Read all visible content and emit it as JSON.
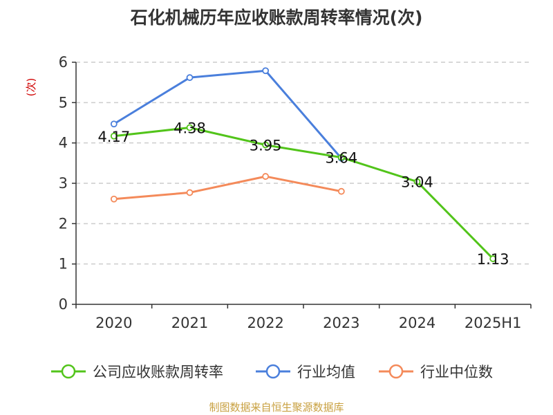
{
  "chart_data": {
    "type": "line",
    "title": "石化机械历年应收账款周转率情况(次)",
    "ylabel": "(次)",
    "categories": [
      "2020",
      "2021",
      "2022",
      "2023",
      "2024",
      "2025H1"
    ],
    "ylim": [
      0,
      6
    ],
    "yticks": [
      0,
      1,
      2,
      3,
      4,
      5,
      6
    ],
    "grid": true,
    "legend_position": "bottom",
    "series": [
      {
        "name": "公司应收账款周转率",
        "color": "#52c41a",
        "values": [
          4.17,
          4.38,
          3.95,
          3.64,
          3.04,
          1.13
        ],
        "labels": [
          "4.17",
          "4.38",
          "3.95",
          "3.64",
          "3.04",
          "1.13"
        ]
      },
      {
        "name": "行业均值",
        "color": "#4a7fdc",
        "values": [
          4.47,
          5.62,
          5.79,
          3.62,
          null,
          null
        ]
      },
      {
        "name": "行业中位数",
        "color": "#f48a5a",
        "values": [
          2.61,
          2.77,
          3.17,
          2.8,
          null,
          null
        ]
      }
    ]
  },
  "footer": {
    "source": "制图数据来自恒生聚源数据库"
  }
}
